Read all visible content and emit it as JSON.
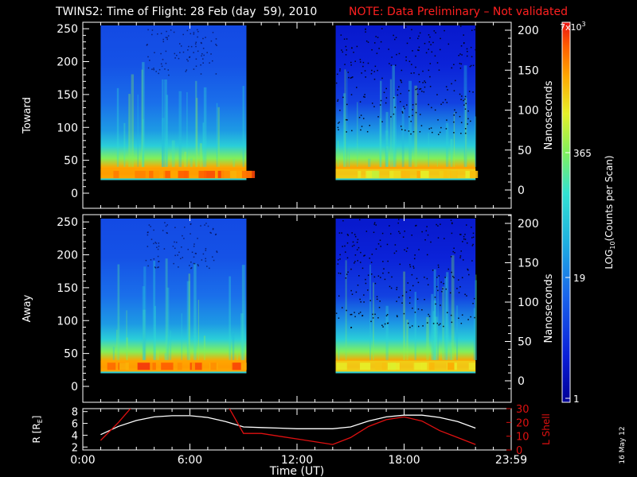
{
  "title": "TWINS2: Time of Flight: 28 Feb (day  59), 2010",
  "note": "NOTE: Data Preliminary – Not validated",
  "date_stamp": "16 May 12",
  "colors": {
    "background": "#000000",
    "foreground": "#ffffff",
    "note": "#ff2020",
    "lshell": "#e01010"
  },
  "chart_data": [
    {
      "type": "heatmap",
      "name": "toward",
      "ylabel": "Toward",
      "y2label": "Nanoseconds",
      "yticks": [
        0,
        50,
        100,
        150,
        200,
        250
      ],
      "ylim": [
        0,
        255
      ],
      "y2ticks": [
        0,
        50,
        100,
        150,
        200
      ],
      "segments": [
        {
          "start": "01:00",
          "end": "09:10"
        },
        {
          "start": "14:10",
          "end": "22:00"
        }
      ],
      "peak_channel": 28
    },
    {
      "type": "heatmap",
      "name": "away",
      "ylabel": "Away",
      "y2label": "Nanoseconds",
      "yticks": [
        0,
        50,
        100,
        150,
        200,
        250
      ],
      "ylim": [
        0,
        255
      ],
      "y2ticks": [
        0,
        50,
        100,
        150,
        200
      ],
      "segments": [
        {
          "start": "01:00",
          "end": "09:10"
        },
        {
          "start": "14:10",
          "end": "22:00"
        }
      ],
      "peak_channel": 30
    },
    {
      "type": "line",
      "name": "orbit",
      "ylabel": "R [R",
      "ylabel_sub": "E",
      "ylabel_end": "]",
      "y2label": "L Shell",
      "yticks": [
        2,
        4,
        6,
        8
      ],
      "ylim": [
        1.5,
        8.5
      ],
      "y2ticks": [
        0,
        10,
        20,
        30
      ],
      "y2lim": [
        0,
        30
      ],
      "xlabel": "Time (UT)",
      "xticks": [
        "0:00",
        "6:00",
        "12:00",
        "18:00",
        "23:59"
      ],
      "x_hours": [
        1.0,
        2.0,
        3.0,
        4.0,
        5.0,
        6.0,
        7.0,
        8.0,
        9.0,
        10.0,
        11.0,
        12.0,
        13.0,
        14.0,
        15.0,
        16.0,
        17.0,
        18.0,
        19.0,
        20.0,
        21.0,
        22.0
      ],
      "series": [
        {
          "name": "R",
          "axis": "left",
          "color": "#ffffff",
          "values": [
            4.1,
            5.5,
            6.5,
            7.1,
            7.3,
            7.3,
            7.0,
            6.3,
            5.4,
            5.3,
            5.2,
            5.1,
            5.1,
            5.1,
            5.4,
            6.4,
            7.1,
            7.4,
            7.4,
            7.0,
            6.3,
            5.2
          ]
        },
        {
          "name": "L Shell",
          "axis": "right",
          "color": "#e01010",
          "values": [
            7,
            20,
            35,
            35,
            35,
            35,
            35,
            35,
            12,
            12,
            10,
            8,
            6,
            4,
            9,
            17,
            22,
            24,
            21,
            14,
            9,
            4
          ]
        }
      ]
    }
  ],
  "colorbar": {
    "label": "LOG",
    "label_sub": "10",
    "label_end": "(Counts per Scan)",
    "top_tick": "7x10",
    "top_tick_sup": "3",
    "ticks": [
      "1",
      "19",
      "365"
    ]
  }
}
